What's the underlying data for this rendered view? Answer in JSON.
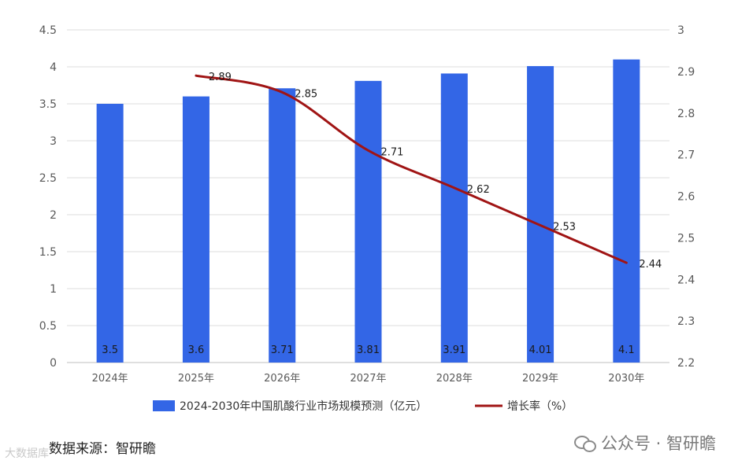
{
  "chart_data": {
    "type": "bar+line",
    "categories": [
      "2024年",
      "2025年",
      "2026年",
      "2027年",
      "2028年",
      "2029年",
      "2030年"
    ],
    "bar_series": {
      "name": "2024-2030年中国肌酸行业市场规模预测（亿元）",
      "color": "#3366e6",
      "values": [
        3.5,
        3.6,
        3.71,
        3.81,
        3.91,
        4.01,
        4.1
      ],
      "labels": [
        "3.5",
        "3.6",
        "3.71",
        "3.81",
        "3.91",
        "4.01",
        "4.1"
      ]
    },
    "line_series": {
      "name": "增长率（%）",
      "color": "#a01414",
      "start_index": 1,
      "values": [
        2.89,
        2.85,
        2.71,
        2.62,
        2.53,
        2.44
      ],
      "labels": [
        "2.89",
        "2.85",
        "2.71",
        "2.62",
        "2.53",
        "2.44"
      ]
    },
    "y_left": {
      "min": 0,
      "max": 4.5,
      "ticks": [
        "0",
        "0.5",
        "1",
        "1.5",
        "2",
        "2.5",
        "3",
        "3.5",
        "4",
        "4.5"
      ]
    },
    "y_right": {
      "min": 2.2,
      "max": 3.0,
      "ticks": [
        "2.2",
        "2.3",
        "2.4",
        "2.5",
        "2.6",
        "2.7",
        "2.8",
        "2.9",
        "3"
      ]
    },
    "grid": true,
    "legend": "bottom"
  },
  "source_text": "数据来源：智研瞻",
  "watermark_left": "大数据库",
  "watermark_right": "公众号 · 智研瞻"
}
